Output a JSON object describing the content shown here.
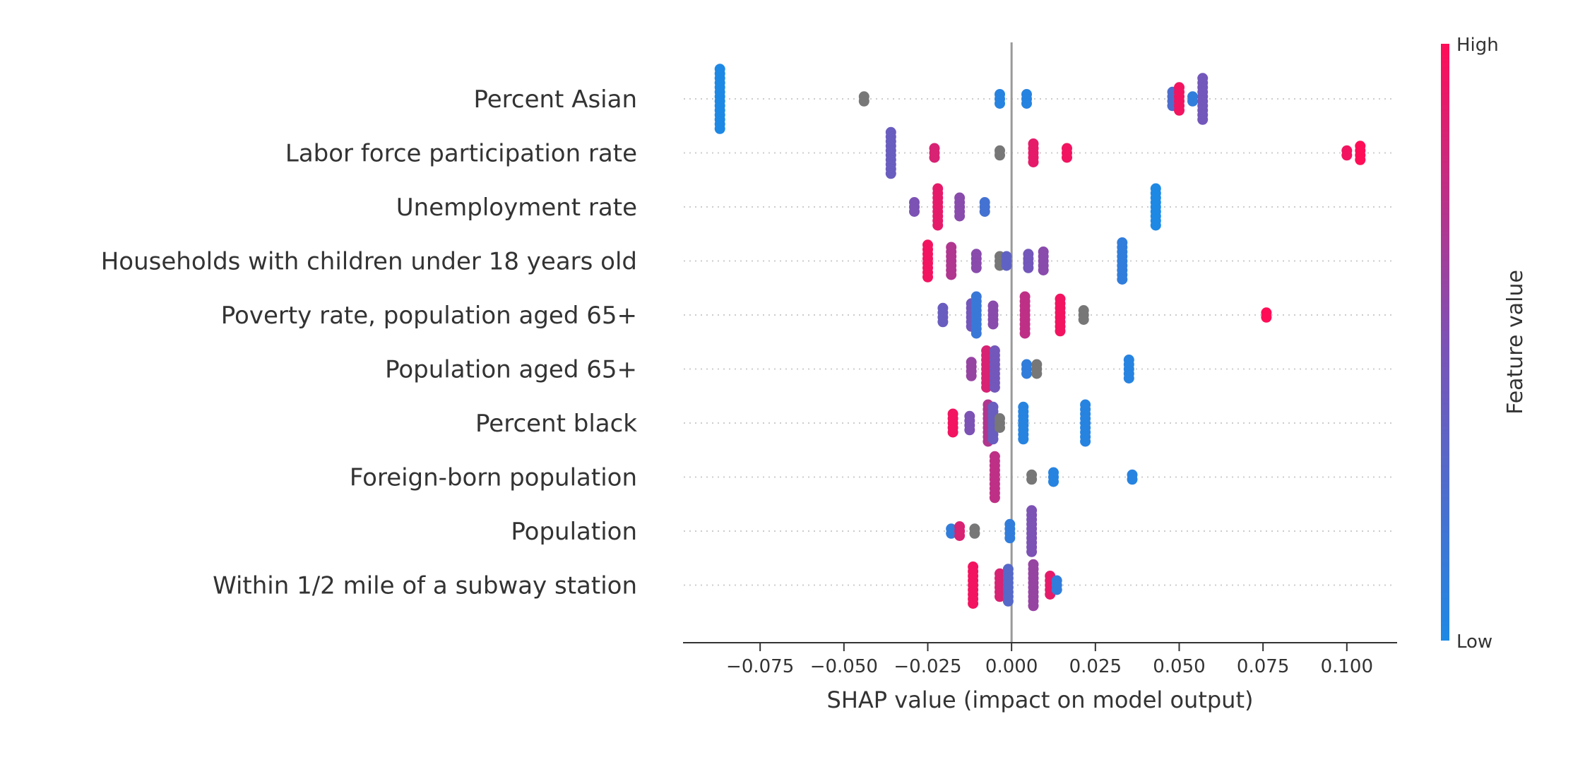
{
  "chart_data": {
    "type": "scatter",
    "subtype": "shap-beeswarm",
    "title": "",
    "xlabel": "SHAP value (impact on model output)",
    "ylabel": "",
    "xlim": [
      -0.098,
      0.115
    ],
    "xticks": [
      -0.075,
      -0.05,
      -0.025,
      0.0,
      0.025,
      0.05,
      0.075,
      0.1
    ],
    "xtick_labels": [
      "−0.075",
      "−0.050",
      "−0.025",
      "0.000",
      "0.025",
      "0.050",
      "0.075",
      "0.100"
    ],
    "zero_line": 0.0,
    "grid": "dotted horizontal row guides",
    "colorbar": {
      "label": "Feature value",
      "high_label": "High",
      "low_label": "Low",
      "high_color": "#ff0d57",
      "low_color": "#1e88e5"
    },
    "features": [
      {
        "name": "Percent Asian",
        "points": [
          {
            "x": -0.087,
            "v": 0.0,
            "n": 14
          },
          {
            "x": -0.044,
            "v": null,
            "n": 2
          },
          {
            "x": -0.0035,
            "v": 0.05,
            "n": 3
          },
          {
            "x": 0.0045,
            "v": 0.05,
            "n": 3
          },
          {
            "x": 0.048,
            "v": 0.25,
            "n": 4
          },
          {
            "x": 0.05,
            "v": 0.95,
            "n": 6
          },
          {
            "x": 0.054,
            "v": 0.1,
            "n": 2
          },
          {
            "x": 0.057,
            "v": 0.45,
            "n": 10
          }
        ]
      },
      {
        "name": "Labor force participation rate",
        "points": [
          {
            "x": -0.036,
            "v": 0.4,
            "n": 10
          },
          {
            "x": -0.023,
            "v": 0.85,
            "n": 3
          },
          {
            "x": -0.0035,
            "v": null,
            "n": 2
          },
          {
            "x": 0.0065,
            "v": 0.9,
            "n": 5
          },
          {
            "x": 0.0165,
            "v": 0.95,
            "n": 3
          },
          {
            "x": 0.1,
            "v": 0.95,
            "n": 2
          },
          {
            "x": 0.104,
            "v": 1.0,
            "n": 4
          }
        ]
      },
      {
        "name": "Unemployment rate",
        "points": [
          {
            "x": -0.029,
            "v": 0.5,
            "n": 3
          },
          {
            "x": -0.022,
            "v": 0.9,
            "n": 9
          },
          {
            "x": -0.0155,
            "v": 0.55,
            "n": 5
          },
          {
            "x": -0.008,
            "v": 0.2,
            "n": 3
          },
          {
            "x": 0.043,
            "v": 0.0,
            "n": 9
          }
        ]
      },
      {
        "name": "Households with children under 18 years old",
        "points": [
          {
            "x": -0.025,
            "v": 0.95,
            "n": 8
          },
          {
            "x": -0.018,
            "v": 0.7,
            "n": 7
          },
          {
            "x": -0.0105,
            "v": 0.55,
            "n": 4
          },
          {
            "x": -0.0035,
            "v": null,
            "n": 3
          },
          {
            "x": -0.0015,
            "v": 0.35,
            "n": 3
          },
          {
            "x": 0.005,
            "v": 0.45,
            "n": 4
          },
          {
            "x": 0.0095,
            "v": 0.55,
            "n": 5
          },
          {
            "x": 0.033,
            "v": 0.1,
            "n": 9
          }
        ]
      },
      {
        "name": "Poverty rate, population aged 65+",
        "points": [
          {
            "x": -0.0205,
            "v": 0.4,
            "n": 4
          },
          {
            "x": -0.012,
            "v": 0.45,
            "n": 6
          },
          {
            "x": -0.0105,
            "v": 0.15,
            "n": 9
          },
          {
            "x": -0.0055,
            "v": 0.55,
            "n": 5
          },
          {
            "x": 0.004,
            "v": 0.75,
            "n": 9
          },
          {
            "x": 0.0145,
            "v": 0.95,
            "n": 8
          },
          {
            "x": 0.0215,
            "v": null,
            "n": 3
          },
          {
            "x": 0.076,
            "v": 1.0,
            "n": 2
          }
        ]
      },
      {
        "name": "Population aged 65+",
        "points": [
          {
            "x": -0.012,
            "v": 0.6,
            "n": 4
          },
          {
            "x": -0.0075,
            "v": 0.85,
            "n": 9
          },
          {
            "x": -0.005,
            "v": 0.45,
            "n": 9
          },
          {
            "x": 0.0045,
            "v": 0.1,
            "n": 3
          },
          {
            "x": 0.0075,
            "v": null,
            "n": 3
          },
          {
            "x": 0.035,
            "v": 0.05,
            "n": 5
          }
        ]
      },
      {
        "name": "Percent black",
        "points": [
          {
            "x": -0.0175,
            "v": 0.95,
            "n": 5
          },
          {
            "x": -0.0125,
            "v": 0.5,
            "n": 4
          },
          {
            "x": -0.007,
            "v": 0.7,
            "n": 9
          },
          {
            "x": -0.0055,
            "v": 0.4,
            "n": 8
          },
          {
            "x": -0.0035,
            "v": null,
            "n": 3
          },
          {
            "x": 0.0035,
            "v": 0.05,
            "n": 8
          },
          {
            "x": 0.022,
            "v": 0.05,
            "n": 9
          }
        ]
      },
      {
        "name": "Foreign-born population",
        "points": [
          {
            "x": -0.005,
            "v": 0.75,
            "n": 10
          },
          {
            "x": 0.006,
            "v": null,
            "n": 2
          },
          {
            "x": 0.0125,
            "v": 0.05,
            "n": 3
          },
          {
            "x": 0.036,
            "v": 0.05,
            "n": 2
          }
        ]
      },
      {
        "name": "Population",
        "points": [
          {
            "x": -0.018,
            "v": 0.1,
            "n": 2
          },
          {
            "x": -0.0155,
            "v": 0.85,
            "n": 3
          },
          {
            "x": -0.011,
            "v": null,
            "n": 2
          },
          {
            "x": -0.0005,
            "v": 0.1,
            "n": 4
          },
          {
            "x": 0.006,
            "v": 0.5,
            "n": 10
          }
        ]
      },
      {
        "name": "Within 1/2 mile of a subway station",
        "points": [
          {
            "x": -0.0115,
            "v": 0.95,
            "n": 9
          },
          {
            "x": -0.0035,
            "v": 0.85,
            "n": 6
          },
          {
            "x": -0.001,
            "v": 0.3,
            "n": 8
          },
          {
            "x": 0.0065,
            "v": 0.6,
            "n": 10
          },
          {
            "x": 0.0115,
            "v": 0.9,
            "n": 5
          },
          {
            "x": 0.0135,
            "v": 0.1,
            "n": 3
          }
        ]
      }
    ]
  }
}
